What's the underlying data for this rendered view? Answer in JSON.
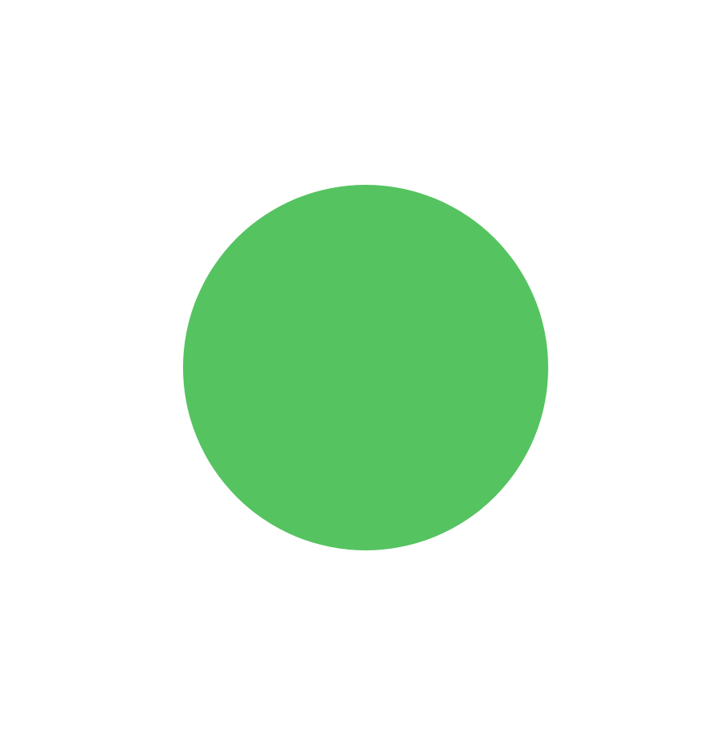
{
  "canvas": {
    "background_color": "#ffffff"
  },
  "dot": {
    "icon": "green-circle-icon",
    "color": "#56c361"
  }
}
